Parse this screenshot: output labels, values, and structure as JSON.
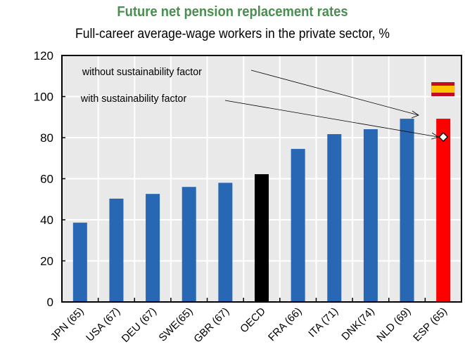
{
  "chart_data": {
    "type": "bar",
    "title": "Future net pension replacement rates",
    "subtitle": "Full-career average-wage workers in the private sector, %",
    "categories": [
      "JPN (65)",
      "USA (67)",
      "DEU (67)",
      "SWE(65)",
      "GBR (67)",
      "OECD",
      "FRA (66)",
      "ITA (71)",
      "DNK(74)",
      "NLD (69)",
      "ESP (65)"
    ],
    "series": [
      {
        "name": "without sustainability factor",
        "values": [
          38.6,
          50.3,
          52.6,
          56.0,
          58.0,
          62.2,
          74.5,
          81.7,
          84.1,
          89.2,
          89.2
        ]
      },
      {
        "name": "with sustainability factor",
        "values": [
          null,
          null,
          null,
          null,
          null,
          null,
          null,
          null,
          null,
          null,
          80.3
        ],
        "marker": "diamond"
      }
    ],
    "bar_colors": [
      "#2767b4",
      "#2767b4",
      "#2767b4",
      "#2767b4",
      "#2767b4",
      "#000000",
      "#2767b4",
      "#2767b4",
      "#2767b4",
      "#2767b4",
      "#ff0000"
    ],
    "ylim": [
      0,
      120
    ],
    "yticks": [
      0,
      20,
      40,
      60,
      80,
      100,
      120
    ],
    "grid": true,
    "plot_background": "#e9e9e9",
    "annotations": [
      "without sustainability factor",
      "with sustainability factor"
    ],
    "flag_icon": "spain-flag-icon",
    "xlabel": "",
    "ylabel": ""
  }
}
